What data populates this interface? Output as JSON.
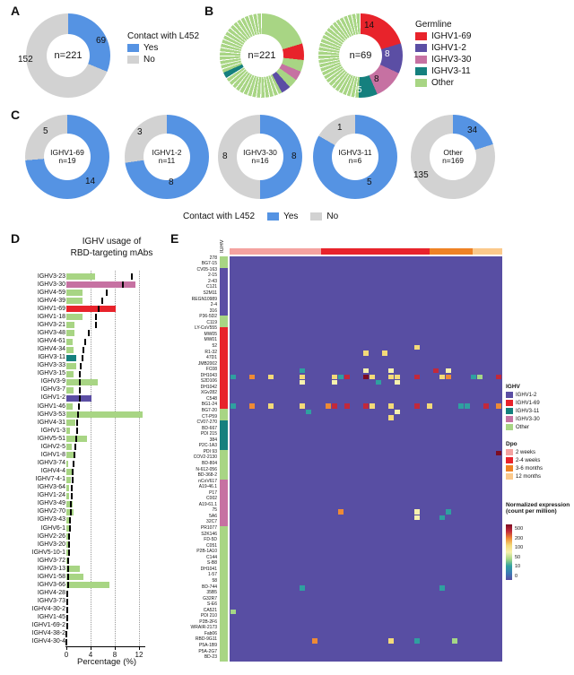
{
  "labels": {
    "panel_a": "A",
    "panel_b": "B",
    "panel_c": "C",
    "panel_d": "D",
    "panel_e": "E",
    "contact_legend_title": "Contact with L452",
    "yes": "Yes",
    "no": "No",
    "germline_title": "Germline"
  },
  "colors": {
    "yes": "#5593E3",
    "no": "#D2D2D2",
    "IGHV1-69": "#E8232B",
    "IGHV1-2": "#5B4EA4",
    "IGHV3-30": "#C671A2",
    "IGHV3-11": "#15807E",
    "Other": "#A8D584",
    "heatmap_bg": "#584EA3"
  },
  "chart_data": [
    {
      "id": "A",
      "type": "donut",
      "title": "Contact with L452",
      "center_label": "n=221",
      "segments": [
        {
          "name": "Yes",
          "value": 69,
          "color": "#5593E3"
        },
        {
          "name": "No",
          "value": 152,
          "color": "#D2D2D2"
        }
      ]
    },
    {
      "id": "B1",
      "type": "donut",
      "center_label": "n=221",
      "legend": [
        {
          "name": "IGHV1-69",
          "color": "#E8232B"
        },
        {
          "name": "IGHV1-2",
          "color": "#5B4EA4"
        },
        {
          "name": "IGHV3-30",
          "color": "#C671A2"
        },
        {
          "name": "IGHV3-11",
          "color": "#15807E"
        },
        {
          "name": "Other",
          "color": "#A8D584"
        }
      ],
      "segments": [
        {
          "name": "Other",
          "value": 45,
          "color": "#A8D584"
        },
        {
          "name": "IGHV1-69",
          "value": 14,
          "color": "#E8232B"
        },
        {
          "name": "Other",
          "value": 10,
          "color": "#A8D584"
        },
        {
          "name": "IGHV3-30",
          "value": 8,
          "color": "#C671A2"
        },
        {
          "name": "Other",
          "value": 8,
          "color": "#A8D584"
        },
        {
          "name": "IGHV1-2",
          "value": 8,
          "color": "#5B4EA4"
        },
        {
          "name": "Other",
          "value": 53,
          "color": "#A8D584",
          "striped": true
        },
        {
          "name": "IGHV3-11",
          "value": 5,
          "color": "#15807E"
        },
        {
          "name": "Other",
          "value": 70,
          "color": "#A8D584",
          "striped": true
        }
      ]
    },
    {
      "id": "B2",
      "type": "donut",
      "center_label": "n=69",
      "segments": [
        {
          "name": "IGHV1-69",
          "value": 14,
          "color": "#E8232B"
        },
        {
          "name": "IGHV1-2",
          "value": 8,
          "color": "#5B4EA4"
        },
        {
          "name": "IGHV3-30",
          "value": 8,
          "color": "#C671A2"
        },
        {
          "name": "IGHV3-11",
          "value": 5,
          "color": "#15807E"
        },
        {
          "name": "Other",
          "value": 34,
          "color": "#A8D584",
          "striped": true
        }
      ]
    },
    {
      "id": "C1",
      "type": "donut",
      "title": "IGHV1-69",
      "center_label": "n=19",
      "segments": [
        {
          "name": "Yes",
          "value": 14,
          "color": "#5593E3"
        },
        {
          "name": "No",
          "value": 5,
          "color": "#D2D2D2"
        }
      ]
    },
    {
      "id": "C2",
      "type": "donut",
      "title": "IGHV1-2",
      "center_label": "n=11",
      "segments": [
        {
          "name": "Yes",
          "value": 8,
          "color": "#5593E3"
        },
        {
          "name": "No",
          "value": 3,
          "color": "#D2D2D2"
        }
      ]
    },
    {
      "id": "C3",
      "type": "donut",
      "title": "IGHV3-30",
      "center_label": "n=16",
      "segments": [
        {
          "name": "Yes",
          "value": 8,
          "color": "#5593E3"
        },
        {
          "name": "No",
          "value": 8,
          "color": "#D2D2D2"
        }
      ]
    },
    {
      "id": "C4",
      "type": "donut",
      "title": "IGHV3-11",
      "center_label": "n=6",
      "segments": [
        {
          "name": "Yes",
          "value": 5,
          "color": "#5593E3"
        },
        {
          "name": "No",
          "value": 1,
          "color": "#D2D2D2"
        }
      ]
    },
    {
      "id": "C5",
      "type": "donut",
      "title": "Other",
      "center_label": "n=169",
      "segments": [
        {
          "name": "Yes",
          "value": 34,
          "color": "#5593E3"
        },
        {
          "name": "No",
          "value": 135,
          "color": "#D2D2D2"
        }
      ]
    },
    {
      "id": "D",
      "type": "bar",
      "title_line1": "IGHV usage of",
      "title_line2": "RBD-targeting mAbs",
      "xlabel": "Percentage (%)",
      "xlim": [
        0,
        13
      ],
      "xticks": [
        0,
        4,
        8,
        12
      ],
      "grid": "dotted",
      "categories": [
        "IGHV3-23",
        "IGHV3-30",
        "IGHV4-59",
        "IGHV4-39",
        "IGHV1-69",
        "IGHV1-18",
        "IGHV3-21",
        "IGHV3-48",
        "IGHV4-61",
        "IGHV4-34",
        "IGHV3-11",
        "IGHV3-33",
        "IGHV3-15",
        "IGHV3-9",
        "IGHV3-7",
        "IGHV1-2",
        "IGHV1-46",
        "IGHV3-53",
        "IGHV4-31",
        "IGHV1-3",
        "IGHV5-51",
        "IGHV2-5",
        "IGHV1-8",
        "IGHV3-74",
        "IGHV4-4",
        "IGHV7-4-1",
        "IGHV3-64",
        "IGHV1-24",
        "IGHV3-49",
        "IGHV2-70",
        "IGHV3-43",
        "IGHV6-1",
        "IGHV2-26",
        "IGHV3-20",
        "IGHV5-10-1",
        "IGHV3-72",
        "IGHV3-13",
        "IGHV1-58",
        "IGHV3-66",
        "IGHV4-28",
        "IGHV3-73",
        "IGHV4-30-2",
        "IGHV1-45",
        "IGHV1-69-2",
        "IGHV4-38-2",
        "IGHV4-30-4"
      ],
      "values": [
        4.7,
        11.4,
        2.7,
        2.6,
        8.1,
        2.6,
        1.3,
        1.4,
        1.1,
        1.2,
        1.6,
        1.6,
        1.2,
        5.2,
        1.2,
        4.1,
        1.0,
        12.6,
        1.5,
        0.6,
        3.4,
        0.9,
        1.3,
        0.35,
        1.0,
        0.7,
        0.5,
        0.5,
        1.0,
        1.2,
        0.5,
        0.5,
        0.4,
        0.45,
        0.35,
        0.3,
        2.2,
        2.8,
        7.1,
        0.3,
        0.25,
        0.2,
        0.15,
        0.1,
        0.15,
        0.1
      ],
      "repertoire_dash": [
        10.8,
        9.3,
        6.7,
        5.9,
        5.4,
        4.9,
        4.85,
        3.7,
        3.1,
        2.8,
        2.6,
        2.3,
        2.2,
        2.2,
        2.2,
        2.15,
        2.0,
        1.9,
        1.75,
        1.75,
        1.6,
        1.5,
        1.4,
        1.2,
        1.05,
        1.0,
        0.9,
        0.85,
        0.8,
        0.7,
        0.65,
        0.6,
        0.5,
        0.45,
        0.4,
        0.35,
        0.3,
        0.3,
        0.25,
        0.2,
        0.2,
        0.15,
        0.1,
        0.1,
        0.05,
        0.05
      ],
      "groups": [
        "Other",
        "IGHV3-30",
        "Other",
        "Other",
        "IGHV1-69",
        "Other",
        "Other",
        "Other",
        "Other",
        "Other",
        "IGHV3-11",
        "Other",
        "Other",
        "Other",
        "Other",
        "IGHV1-2",
        "Other",
        "Other",
        "Other",
        "Other",
        "Other",
        "Other",
        "Other",
        "Other",
        "Other",
        "Other",
        "Other",
        "Other",
        "Other",
        "Other",
        "Other",
        "Other",
        "Other",
        "Other",
        "Other",
        "Other",
        "Other",
        "Other",
        "Other",
        "Other",
        "Other",
        "Other",
        "Other",
        "Other",
        "Other",
        "Other"
      ]
    },
    {
      "id": "E",
      "type": "heatmap",
      "row_annotation_title": "IGHV",
      "col_count": 43,
      "background_value": 0,
      "rows": [
        {
          "name": "278",
          "group": "Other"
        },
        {
          "name": "BG7-15",
          "group": "Other"
        },
        {
          "name": "CV05-163",
          "group": "IGHV1-2"
        },
        {
          "name": "2-15",
          "group": "IGHV1-2"
        },
        {
          "name": "2-43",
          "group": "IGHV1-2"
        },
        {
          "name": "C121",
          "group": "IGHV1-2"
        },
        {
          "name": "S2M11",
          "group": "IGHV1-2"
        },
        {
          "name": "REGN10989",
          "group": "IGHV1-2"
        },
        {
          "name": "2-4",
          "group": "IGHV1-2"
        },
        {
          "name": "316",
          "group": "IGHV1-2"
        },
        {
          "name": "P36-5D2",
          "group": "Other"
        },
        {
          "name": "C119",
          "group": "Other"
        },
        {
          "name": "LY-CoV555",
          "group": "IGHV1-69"
        },
        {
          "name": "MW05",
          "group": "IGHV1-69"
        },
        {
          "name": "MW01",
          "group": "IGHV1-69"
        },
        {
          "name": "52",
          "group": "IGHV1-69"
        },
        {
          "name": "R1-32",
          "group": "IGHV1-69"
        },
        {
          "name": "47D1",
          "group": "IGHV1-69"
        },
        {
          "name": "JMB2002",
          "group": "IGHV1-69"
        },
        {
          "name": "FC08",
          "group": "IGHV1-69"
        },
        {
          "name": "DH1043",
          "group": "IGHV1-69"
        },
        {
          "name": "S2D106",
          "group": "IGHV1-69"
        },
        {
          "name": "DH1042",
          "group": "IGHV1-69"
        },
        {
          "name": "XGv282",
          "group": "IGHV1-69"
        },
        {
          "name": "C548",
          "group": "IGHV1-69"
        },
        {
          "name": "BG1-24",
          "group": "IGHV1-69"
        },
        {
          "name": "BG7-20",
          "group": "Other"
        },
        {
          "name": "CT-P59",
          "group": "Other"
        },
        {
          "name": "CV07-270",
          "group": "IGHV3-11"
        },
        {
          "name": "BD-667",
          "group": "IGHV3-11"
        },
        {
          "name": "PDI 215",
          "group": "IGHV3-11"
        },
        {
          "name": "384",
          "group": "IGHV3-11"
        },
        {
          "name": "P2C-1A3",
          "group": "IGHV3-11"
        },
        {
          "name": "PDI 93",
          "group": "Other"
        },
        {
          "name": "COV2-2130",
          "group": "Other"
        },
        {
          "name": "BD-804",
          "group": "Other"
        },
        {
          "name": "N-612-056",
          "group": "Other"
        },
        {
          "name": "BD-368-2",
          "group": "Other"
        },
        {
          "name": "nCoV617",
          "group": "IGHV3-30"
        },
        {
          "name": "A19-46.1",
          "group": "IGHV3-30"
        },
        {
          "name": "P17",
          "group": "IGHV3-30"
        },
        {
          "name": "C002",
          "group": "IGHV3-30"
        },
        {
          "name": "A19-61.1",
          "group": "IGHV3-30"
        },
        {
          "name": "75",
          "group": "IGHV3-30"
        },
        {
          "name": "5A6",
          "group": "IGHV3-30"
        },
        {
          "name": "32C7",
          "group": "IGHV3-30"
        },
        {
          "name": "PR1077",
          "group": "Other"
        },
        {
          "name": "S2K146",
          "group": "Other"
        },
        {
          "name": "FD-5D",
          "group": "Other"
        },
        {
          "name": "C051",
          "group": "Other"
        },
        {
          "name": "P2B-1A10",
          "group": "Other"
        },
        {
          "name": "C144",
          "group": "Other"
        },
        {
          "name": "S-B8",
          "group": "Other"
        },
        {
          "name": "DH1041",
          "group": "Other"
        },
        {
          "name": "1-57",
          "group": "Other"
        },
        {
          "name": "58",
          "group": "Other"
        },
        {
          "name": "BD-744",
          "group": "Other"
        },
        {
          "name": "35B5",
          "group": "Other"
        },
        {
          "name": "G32R7",
          "group": "Other"
        },
        {
          "name": "S-E6",
          "group": "Other"
        },
        {
          "name": "CA521",
          "group": "Other"
        },
        {
          "name": "PDI 210",
          "group": "Other"
        },
        {
          "name": "P2B-2F6",
          "group": "Other"
        },
        {
          "name": "WRAIR-2173",
          "group": "Other"
        },
        {
          "name": "Fab06",
          "group": "Other"
        },
        {
          "name": "RBD-9G11",
          "group": "Other"
        },
        {
          "name": "P5A-1B9",
          "group": "Other"
        },
        {
          "name": "P5A-2G7",
          "group": "Other"
        },
        {
          "name": "BD-23",
          "group": "Other"
        }
      ],
      "top_annotation": [
        {
          "label": "2 weeks",
          "frac": 0.335,
          "color": "#F4A2A0"
        },
        {
          "label": "2-4 weeks",
          "frac": 0.4,
          "color": "#E8232B"
        },
        {
          "label": "3-6 months",
          "frac": 0.155,
          "color": "#EF8224"
        },
        {
          "label": "12 months",
          "frac": 0.11,
          "color": "#FBC98B"
        }
      ],
      "palette_stops": [
        {
          "v": 0,
          "color": "#584EA3"
        },
        {
          "v": 10,
          "color": "#3C7CB5"
        },
        {
          "v": 25,
          "color": "#2FA0A0"
        },
        {
          "v": 50,
          "color": "#A4D786"
        },
        {
          "v": 80,
          "color": "#F6F1AE"
        },
        {
          "v": 100,
          "color": "#F3DA79"
        },
        {
          "v": 200,
          "color": "#EE8A35"
        },
        {
          "v": 300,
          "color": "#C2293B"
        },
        {
          "v": 500,
          "color": "#7C0D23"
        }
      ],
      "cells": [
        [
          15,
          29,
          100
        ],
        [
          16,
          21,
          100
        ],
        [
          16,
          24,
          100
        ],
        [
          20,
          0,
          25
        ],
        [
          20,
          3,
          200
        ],
        [
          20,
          6,
          100
        ],
        [
          19,
          11,
          25
        ],
        [
          20,
          11,
          100
        ],
        [
          21,
          11,
          80
        ],
        [
          20,
          16,
          100
        ],
        [
          21,
          16,
          80
        ],
        [
          20,
          17,
          25
        ],
        [
          20,
          18,
          300
        ],
        [
          19,
          21,
          80
        ],
        [
          20,
          21,
          500
        ],
        [
          20,
          22,
          100
        ],
        [
          21,
          23,
          25
        ],
        [
          19,
          25,
          80
        ],
        [
          20,
          25,
          100
        ],
        [
          20,
          26,
          100
        ],
        [
          21,
          26,
          80
        ],
        [
          20,
          29,
          300
        ],
        [
          19,
          32,
          300
        ],
        [
          19,
          34,
          80
        ],
        [
          20,
          33,
          100
        ],
        [
          20,
          34,
          200
        ],
        [
          20,
          38,
          25
        ],
        [
          20,
          39,
          50
        ],
        [
          20,
          42,
          300
        ],
        [
          25,
          0,
          25
        ],
        [
          25,
          3,
          200
        ],
        [
          25,
          6,
          100
        ],
        [
          25,
          11,
          100
        ],
        [
          26,
          12,
          25
        ],
        [
          25,
          15,
          200
        ],
        [
          25,
          16,
          300
        ],
        [
          25,
          18,
          300
        ],
        [
          25,
          21,
          300
        ],
        [
          25,
          22,
          100
        ],
        [
          25,
          25,
          100
        ],
        [
          26,
          26,
          80
        ],
        [
          25,
          29,
          300
        ],
        [
          25,
          31,
          100
        ],
        [
          25,
          36,
          25
        ],
        [
          25,
          37,
          25
        ],
        [
          25,
          40,
          300
        ],
        [
          25,
          42,
          200
        ],
        [
          27,
          25,
          100
        ],
        [
          33,
          42,
          500
        ],
        [
          43,
          17,
          200
        ],
        [
          43,
          29,
          80
        ],
        [
          44,
          29,
          80
        ],
        [
          44,
          33,
          25
        ],
        [
          43,
          34,
          25
        ],
        [
          56,
          11,
          25
        ],
        [
          56,
          33,
          25
        ],
        [
          60,
          0,
          50
        ],
        [
          65,
          13,
          200
        ],
        [
          65,
          25,
          100
        ],
        [
          65,
          29,
          25
        ],
        [
          65,
          35,
          50
        ]
      ],
      "legends": {
        "ighv_title": "IGHV",
        "ighv_items": [
          {
            "name": "IGHV1-2",
            "color": "#5B4EA4"
          },
          {
            "name": "IGHV1-69",
            "color": "#E8232B"
          },
          {
            "name": "IGHV3-11",
            "color": "#15807E"
          },
          {
            "name": "IGHV3-30",
            "color": "#C671A2"
          },
          {
            "name": "Other",
            "color": "#A8D584"
          }
        ],
        "dpo_title": "Dpo",
        "expr_title_1": "Normalized expression",
        "expr_title_2": "(count per million)",
        "expr_ticks": [
          500,
          200,
          100,
          50,
          10,
          0
        ]
      }
    }
  ]
}
